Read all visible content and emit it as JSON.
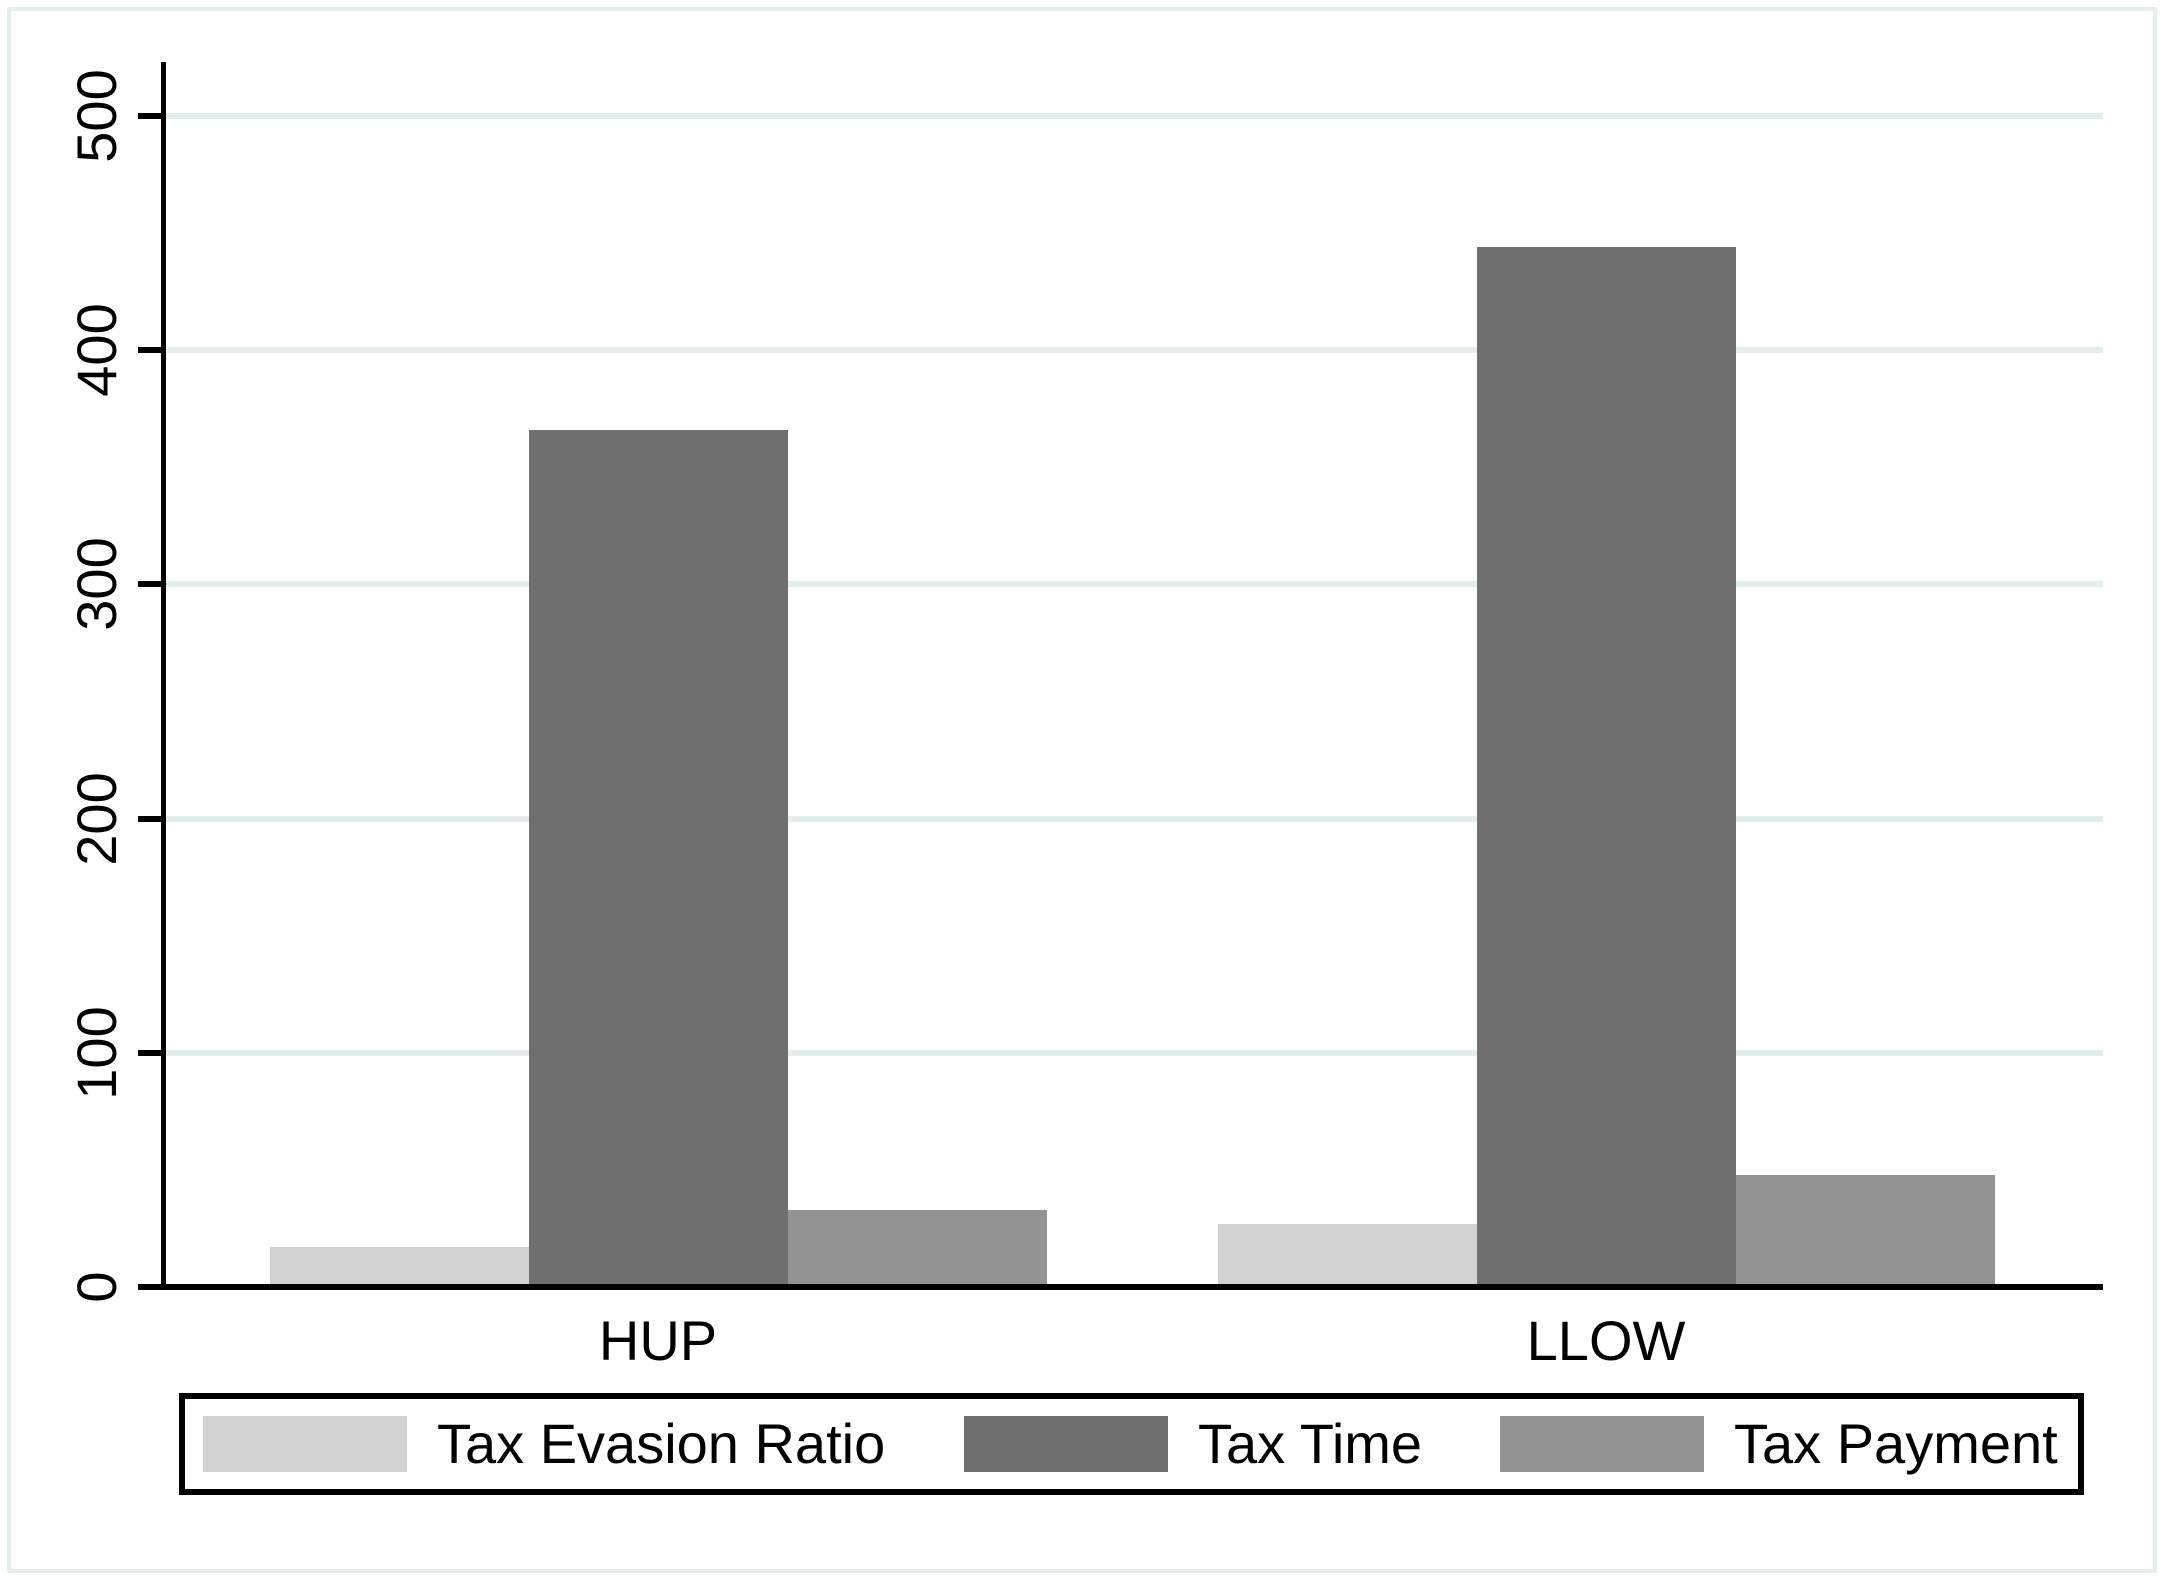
{
  "figure": {
    "background": "#ffffff",
    "frame_color": "#e3efef",
    "gridline_color": "#e3efef",
    "axis_color": "#000000",
    "text_color": "#000000"
  },
  "chart_data": {
    "type": "bar",
    "title": "",
    "xlabel": "",
    "ylabel": "",
    "categories": [
      "HUP",
      "LLOW"
    ],
    "series": [
      {
        "name": "Tax Evasion Ratio",
        "color": "#d2d2d2",
        "values": [
          17,
          27
        ]
      },
      {
        "name": "Tax Time",
        "color": "#6f6f6f",
        "values": [
          366,
          444
        ]
      },
      {
        "name": "Tax Payment",
        "color": "#939393",
        "values": [
          33,
          48
        ]
      }
    ],
    "ylim": [
      0,
      500
    ],
    "yticks": [
      0,
      100,
      200,
      300,
      400,
      500
    ],
    "grid": true,
    "legend_position": "bottom-box",
    "y_tick_label_rotation": 90
  }
}
